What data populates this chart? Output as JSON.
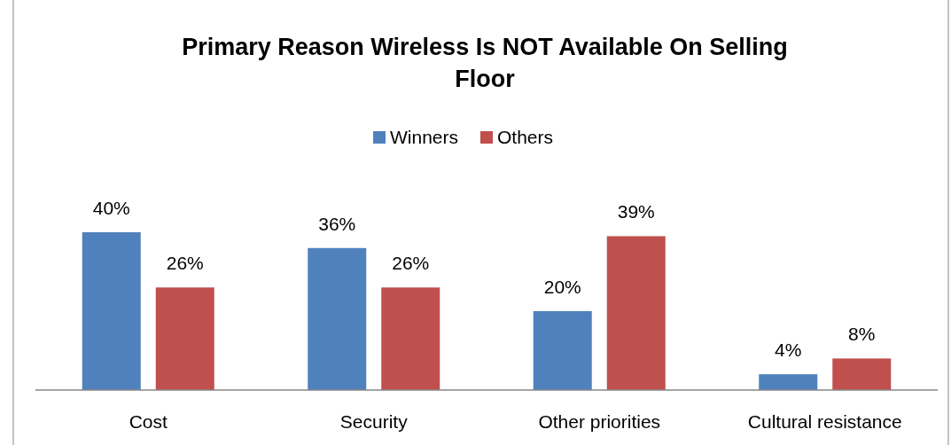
{
  "chart_data": {
    "type": "bar",
    "title": "Primary Reason Wireless Is NOT Available On Selling Floor",
    "categories": [
      "Cost",
      "Security",
      "Other priorities",
      "Cultural resistance"
    ],
    "series": [
      {
        "name": "Winners",
        "color": "#4f81bd",
        "values": [
          40,
          36,
          20,
          4
        ],
        "value_labels": [
          "40%",
          "36%",
          "20%",
          "4%"
        ]
      },
      {
        "name": "Others",
        "color": "#c0504d",
        "values": [
          26,
          26,
          39,
          8
        ],
        "value_labels": [
          "26%",
          "26%",
          "39%",
          "8%"
        ]
      }
    ],
    "legend": "top"
  }
}
